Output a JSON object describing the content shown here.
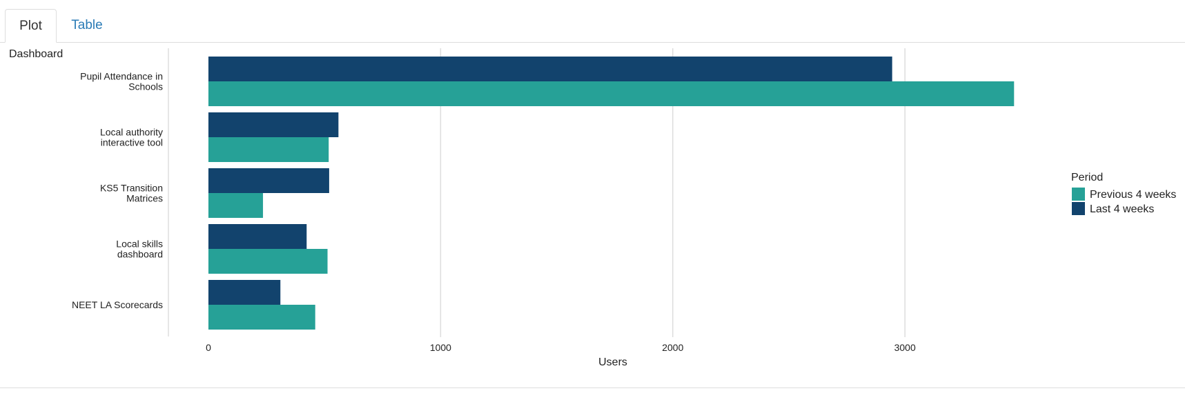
{
  "tabs": [
    {
      "label": "Plot",
      "active": true
    },
    {
      "label": "Table",
      "active": false
    }
  ],
  "colors": {
    "previous": "#26a197",
    "last": "#12436d",
    "grid": "#dddddd",
    "tab_link": "#2a7bb6"
  },
  "chart_data": {
    "type": "bar",
    "orientation": "horizontal",
    "ylabel": "Dashboard",
    "xlabel": "Users",
    "categories": [
      [
        "Pupil Attendance in",
        "Schools"
      ],
      [
        "Local authority",
        "interactive tool"
      ],
      [
        "KS5 Transition",
        "Matrices"
      ],
      [
        "Local skills",
        "dashboard"
      ],
      [
        "NEET LA Scorecards"
      ]
    ],
    "series": [
      {
        "name": "Last 4 weeks",
        "values": [
          2945,
          560,
          520,
          423,
          310
        ]
      },
      {
        "name": "Previous 4 weeks",
        "values": [
          3470,
          518,
          235,
          513,
          460
        ]
      }
    ],
    "xlim": [
      0,
      3600
    ],
    "xticks": [
      0,
      1000,
      2000,
      3000
    ],
    "grid": true,
    "legend": {
      "title": "Period",
      "position": "right",
      "entries": [
        "Previous 4 weeks",
        "Last 4 weeks"
      ]
    }
  }
}
